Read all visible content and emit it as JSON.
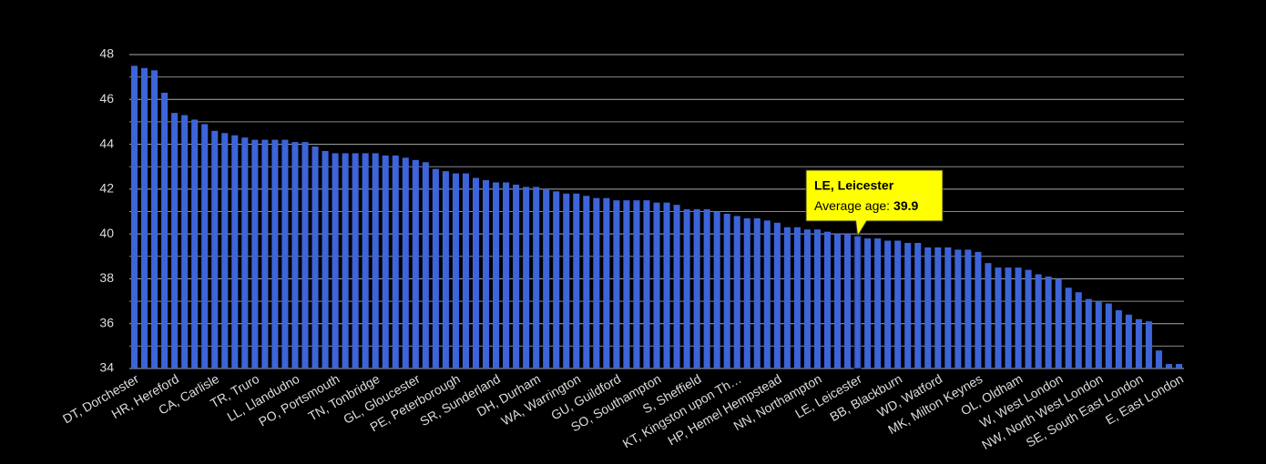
{
  "chart_data": {
    "type": "bar",
    "categories": [
      "DT, Dorchester",
      null,
      null,
      null,
      "HR, Hereford",
      null,
      null,
      null,
      "CA, Carlisle",
      null,
      null,
      null,
      "TR, Truro",
      null,
      null,
      null,
      "LL, Llandudno",
      null,
      null,
      null,
      "PO, Portsmouth",
      null,
      null,
      null,
      "TN, Tonbridge",
      null,
      null,
      null,
      "GL, Gloucester",
      null,
      null,
      null,
      "PE, Peterborough",
      null,
      null,
      null,
      "SR, Sunderland",
      null,
      null,
      null,
      "DH, Durham",
      null,
      null,
      null,
      "WA, Warrington",
      null,
      null,
      null,
      "GU, Guildford",
      null,
      null,
      null,
      "SO, Southampton",
      null,
      null,
      null,
      "S, Sheffield",
      null,
      null,
      null,
      "KT, Kingston upon Th…",
      null,
      null,
      null,
      "HP, Hemel Hempstead",
      null,
      null,
      null,
      "NN, Northampton",
      null,
      null,
      null,
      "LE, Leicester",
      null,
      null,
      null,
      "BB, Blackburn",
      null,
      null,
      null,
      "WD, Watford",
      null,
      null,
      null,
      "MK, Milton Keynes",
      null,
      null,
      null,
      "OL, Oldham",
      null,
      null,
      null,
      "W, West London",
      null,
      null,
      null,
      "NW, North West London",
      null,
      null,
      null,
      "SE, South East London",
      null,
      null,
      null,
      "E, East London"
    ],
    "values": [
      47.5,
      47.4,
      47.3,
      46.3,
      45.4,
      45.3,
      45.1,
      44.9,
      44.6,
      44.5,
      44.4,
      44.3,
      44.2,
      44.2,
      44.2,
      44.2,
      44.1,
      44.1,
      43.9,
      43.7,
      43.6,
      43.6,
      43.6,
      43.6,
      43.6,
      43.5,
      43.5,
      43.4,
      43.3,
      43.2,
      42.9,
      42.8,
      42.7,
      42.7,
      42.5,
      42.4,
      42.3,
      42.3,
      42.2,
      42.1,
      42.1,
      42.0,
      41.9,
      41.8,
      41.8,
      41.7,
      41.6,
      41.6,
      41.5,
      41.5,
      41.5,
      41.5,
      41.4,
      41.4,
      41.3,
      41.1,
      41.1,
      41.1,
      41.0,
      40.9,
      40.8,
      40.7,
      40.7,
      40.6,
      40.5,
      40.3,
      40.3,
      40.2,
      40.2,
      40.1,
      40.0,
      40.0,
      39.9,
      39.8,
      39.8,
      39.7,
      39.7,
      39.6,
      39.6,
      39.4,
      39.4,
      39.4,
      39.3,
      39.3,
      39.2,
      38.7,
      38.5,
      38.5,
      38.5,
      38.4,
      38.2,
      38.1,
      38.0,
      37.6,
      37.4,
      37.1,
      37.0,
      36.9,
      36.6,
      36.4,
      36.2,
      36.1,
      34.8,
      34.2,
      34.2
    ],
    "color": "#3d64d8",
    "ylim": [
      34,
      48
    ],
    "yticks": [
      34,
      36,
      38,
      40,
      42,
      44,
      46,
      48
    ],
    "y_minor_ticks": [
      35,
      37,
      39,
      41,
      43,
      45,
      47
    ],
    "grid": true,
    "tooltip": {
      "title": "LE, Leicester",
      "label": "Average age:"
    }
  }
}
